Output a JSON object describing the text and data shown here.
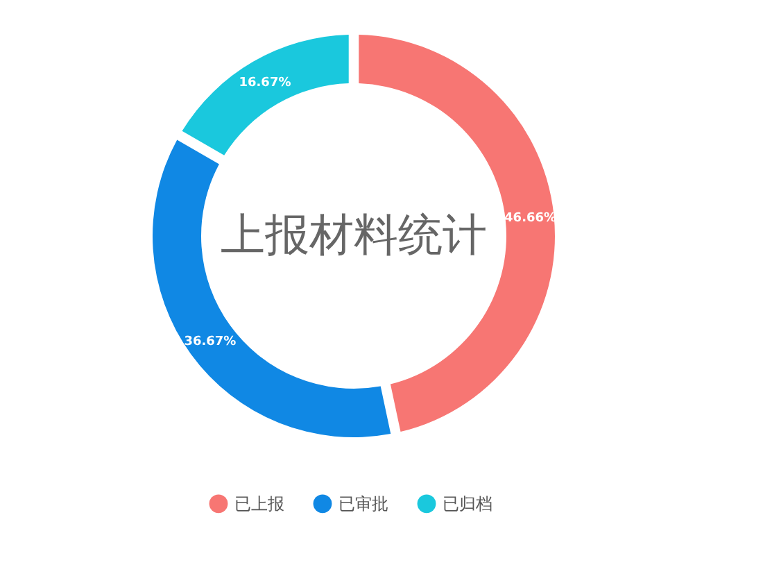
{
  "chart_data": {
    "type": "donut",
    "title": "上报材料统计",
    "categories": [
      "已上报",
      "已审批",
      "已归档"
    ],
    "values": [
      46.66,
      36.67,
      16.67
    ],
    "colors": [
      "#f77673",
      "#1088e4",
      "#1ac8dd"
    ],
    "value_labels": [
      "46.66%",
      "36.67%",
      "16.67%"
    ],
    "legend": "bottom"
  }
}
